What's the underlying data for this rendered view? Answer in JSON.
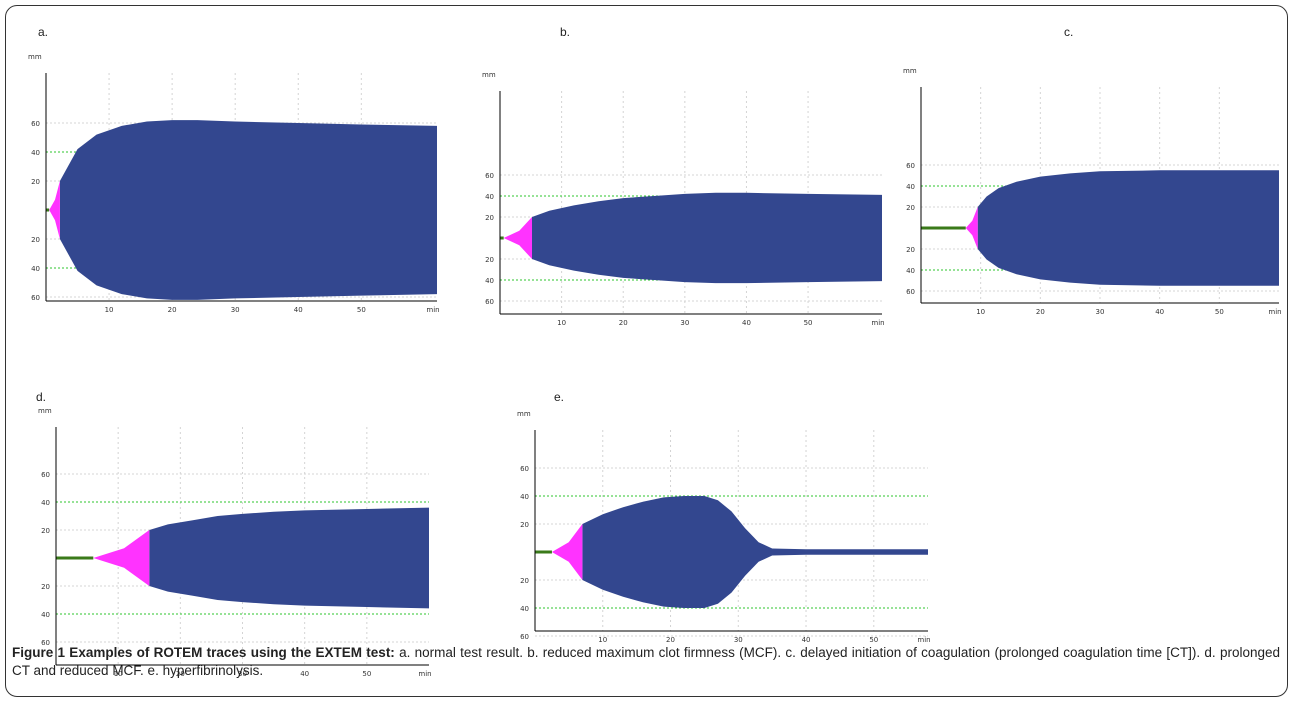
{
  "caption": {
    "label": "Figure 1 Examples of ROTEM traces using the EXTEM test:",
    "text": " a. normal test result. b. reduced maximum clot firmness (MCF). c. delayed initiation of coagulation (prolonged coagulation time [CT]). d. prolonged CT and reduced MCF. e. hyperfibrinolysis."
  },
  "colors": {
    "clot": "#33478f",
    "formation": "#ff33ff",
    "baseline": "#3a7a1a",
    "ref_line": "#2cc42c",
    "grid": "#d4d4d4",
    "axis": "#000000"
  },
  "chart_data": [
    {
      "type": "area",
      "panel": "a.",
      "yunit": "mm",
      "xunit": "min",
      "xticks": [
        10,
        20,
        30,
        40,
        50
      ],
      "yticks": [
        "60",
        "40",
        "20",
        "20",
        "40",
        "60"
      ],
      "reference_lines": [
        40,
        -40
      ],
      "xlim": [
        0,
        62
      ],
      "ct_min": 0.5,
      "formation_end_min": 2.2,
      "amplitude_at_formation_end": 20,
      "series": [
        {
          "x": [
            0.5,
            2.2,
            5,
            8,
            12,
            16,
            20,
            24,
            30,
            40,
            50,
            62
          ],
          "amplitude": [
            0,
            20,
            42,
            52,
            58,
            61,
            62,
            62,
            61,
            60,
            59,
            58
          ]
        }
      ]
    },
    {
      "type": "area",
      "panel": "b.",
      "yunit": "mm",
      "xunit": "min",
      "xticks": [
        10,
        20,
        30,
        40,
        50
      ],
      "yticks": [
        "60",
        "40",
        "20",
        "20",
        "40",
        "60"
      ],
      "reference_lines": [
        40,
        -40
      ],
      "xlim": [
        0,
        62
      ],
      "ct_min": 0.6,
      "formation_end_min": 5.2,
      "amplitude_at_formation_end": 20,
      "series": [
        {
          "x": [
            0.6,
            5.2,
            8,
            12,
            16,
            20,
            25,
            30,
            35,
            40,
            50,
            62
          ],
          "amplitude": [
            0,
            20,
            26,
            31,
            35,
            38,
            40,
            42,
            43,
            43,
            42,
            41
          ]
        }
      ]
    },
    {
      "type": "area",
      "panel": "c.",
      "yunit": "mm",
      "xunit": "min",
      "xticks": [
        10,
        20,
        30,
        40,
        50
      ],
      "yticks": [
        "60",
        "40",
        "20",
        "20",
        "40",
        "60"
      ],
      "reference_lines": [
        40,
        -40
      ],
      "xlim": [
        0,
        60
      ],
      "ct_min": 7.5,
      "formation_end_min": 9.5,
      "amplitude_at_formation_end": 20,
      "series": [
        {
          "x": [
            7.5,
            9.5,
            11,
            13,
            16,
            20,
            25,
            30,
            40,
            50,
            60
          ],
          "amplitude": [
            0,
            20,
            30,
            38,
            44,
            49,
            52,
            54,
            55,
            55,
            55
          ]
        }
      ]
    },
    {
      "type": "area",
      "panel": "d.",
      "yunit": "mm",
      "xunit": "min",
      "xticks": [
        10,
        20,
        30,
        40,
        50
      ],
      "yticks": [
        "60",
        "40",
        "20",
        "20",
        "40",
        "60"
      ],
      "reference_lines": [
        40,
        -40
      ],
      "xlim": [
        0,
        60
      ],
      "ct_min": 6,
      "formation_end_min": 15,
      "amplitude_at_formation_end": 20,
      "series": [
        {
          "x": [
            6,
            15,
            18,
            22,
            26,
            30,
            35,
            40,
            50,
            60
          ],
          "amplitude": [
            0,
            20,
            24,
            27,
            30,
            31.5,
            33,
            34,
            35,
            36
          ]
        }
      ]
    },
    {
      "type": "area",
      "panel": "e.",
      "yunit": "mm",
      "xunit": "min",
      "xticks": [
        10,
        20,
        30,
        40,
        50
      ],
      "yticks": [
        "60",
        "40",
        "20",
        "20",
        "40",
        "60"
      ],
      "reference_lines": [
        40,
        -40
      ],
      "xlim": [
        0,
        58
      ],
      "ct_min": 2.5,
      "formation_end_min": 7,
      "amplitude_at_formation_end": 20,
      "series": [
        {
          "x": [
            2.5,
            7,
            10,
            13,
            16,
            19,
            22,
            25,
            27,
            29,
            31,
            33,
            35,
            40,
            50,
            58
          ],
          "amplitude": [
            0,
            20,
            27,
            32,
            36,
            39,
            40,
            40,
            37,
            29,
            17,
            7,
            2.5,
            2,
            2,
            2
          ]
        }
      ]
    }
  ]
}
